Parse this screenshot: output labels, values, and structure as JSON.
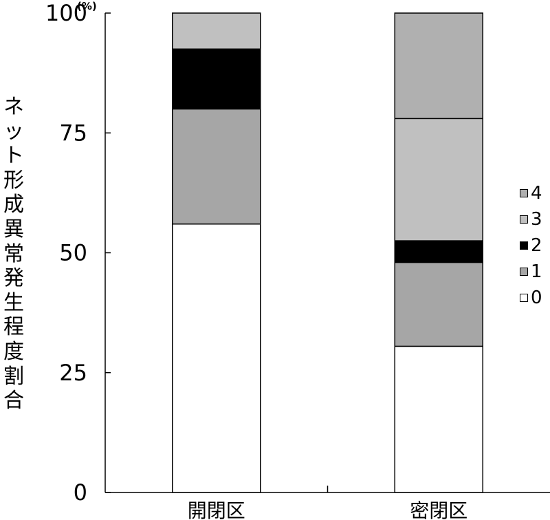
{
  "chart_data": {
    "type": "bar",
    "stacked": true,
    "ylabel": "ネット形成異常発生程度割合",
    "y_unit": "(%)",
    "ylim": [
      0,
      100
    ],
    "yticks": [
      0,
      25,
      50,
      75,
      100
    ],
    "categories": [
      "開閉区",
      "密閉区"
    ],
    "legend_position": "right",
    "series": [
      {
        "name": "0",
        "color": "#ffffff",
        "values": [
          56,
          30.5
        ]
      },
      {
        "name": "1",
        "color": "#a6a6a6",
        "values": [
          24,
          17.5
        ]
      },
      {
        "name": "2",
        "color": "#000000",
        "values": [
          12.5,
          4.5
        ]
      },
      {
        "name": "3",
        "color": "#c0c0c0",
        "values": [
          7.5,
          25.5
        ]
      },
      {
        "name": "4",
        "color": "#b0b0b0",
        "values": [
          0,
          22
        ]
      }
    ]
  }
}
